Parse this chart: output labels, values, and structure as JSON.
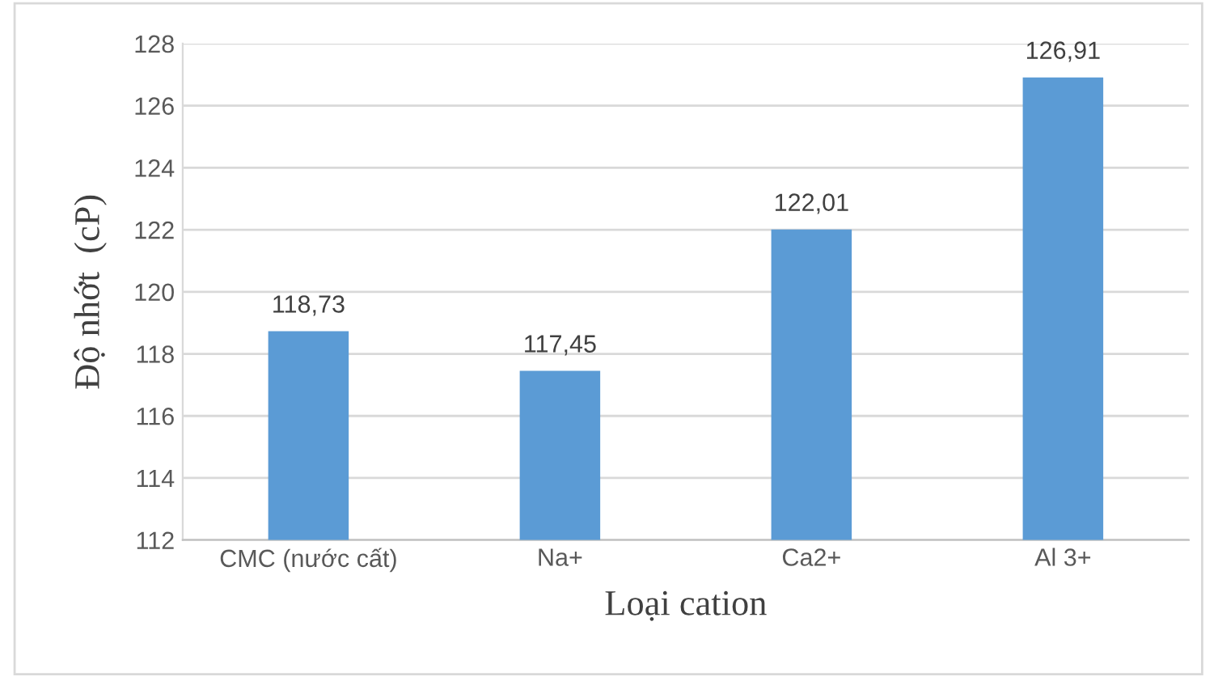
{
  "chart_data": {
    "type": "bar",
    "xlabel": "Loại cation",
    "ylabel": "Độ nhớt  (cP)",
    "categories": [
      "CMC (nước cất)",
      "Na+",
      "Ca2+",
      "Al 3+"
    ],
    "values": [
      118.73,
      117.45,
      122.01,
      126.91
    ],
    "value_labels": [
      "118,73",
      "117,45",
      "122,01",
      "126,91"
    ],
    "color": "#5b9bd5",
    "ylim": [
      112,
      128
    ],
    "yticks": [
      112,
      114,
      116,
      118,
      120,
      122,
      124,
      126,
      128
    ],
    "grid": "y"
  }
}
